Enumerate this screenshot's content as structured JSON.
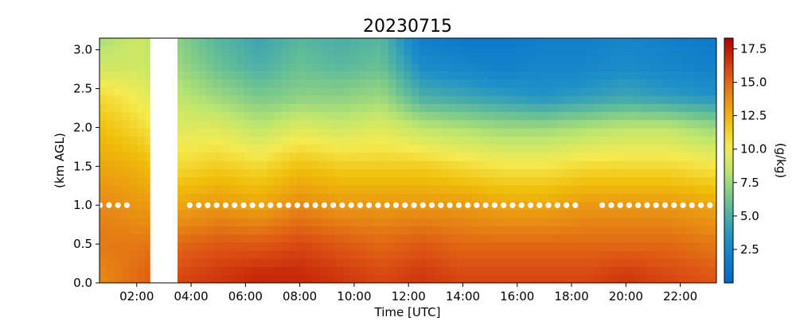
{
  "chart_data": {
    "type": "heatmap",
    "title": "20230715",
    "xlabel": "Time [UTC]",
    "ylabel": "(km AGL)",
    "colorbar_label": "(g/kg)",
    "colormap": "jet_r-like (blue=low, red=high)",
    "x_unit": "hours UTC",
    "xlim": [
      0.63,
      23.33
    ],
    "ylim": [
      0.0,
      3.15
    ],
    "x_ticks": [
      {
        "value": 2,
        "label": "02:00"
      },
      {
        "value": 4,
        "label": "04:00"
      },
      {
        "value": 6,
        "label": "06:00"
      },
      {
        "value": 8,
        "label": "08:00"
      },
      {
        "value": 10,
        "label": "10:00"
      },
      {
        "value": 12,
        "label": "12:00"
      },
      {
        "value": 14,
        "label": "14:00"
      },
      {
        "value": 16,
        "label": "16:00"
      },
      {
        "value": 18,
        "label": "18:00"
      },
      {
        "value": 20,
        "label": "20:00"
      },
      {
        "value": 22,
        "label": "22:00"
      }
    ],
    "y_ticks": [
      {
        "value": 0.0,
        "label": "0.0"
      },
      {
        "value": 0.5,
        "label": "0.5"
      },
      {
        "value": 1.0,
        "label": "1.0"
      },
      {
        "value": 1.5,
        "label": "1.5"
      },
      {
        "value": 2.0,
        "label": "2.0"
      },
      {
        "value": 2.5,
        "label": "2.5"
      },
      {
        "value": 3.0,
        "label": "3.0"
      }
    ],
    "colorbar_range": [
      0.0,
      18.3
    ],
    "colorbar_ticks": [
      {
        "value": 2.5,
        "label": "2.5"
      },
      {
        "value": 5.0,
        "label": "5.0"
      },
      {
        "value": 7.5,
        "label": "7.5"
      },
      {
        "value": 10.0,
        "label": "10.0"
      },
      {
        "value": 12.5,
        "label": "12.5"
      },
      {
        "value": 15.0,
        "label": "15.0"
      },
      {
        "value": 17.5,
        "label": "17.5"
      }
    ],
    "data_gap": {
      "x_start": 2.5,
      "x_end": 3.5
    },
    "time_columns": [
      {
        "t": 0.7,
        "profile": [
          14,
          14.5,
          14,
          13,
          12,
          11,
          9,
          8
        ]
      },
      {
        "t": 2.1,
        "profile": [
          15,
          14.5,
          13.5,
          12.5,
          11,
          10,
          9,
          9
        ]
      },
      {
        "t": 3.5,
        "profile": [
          16,
          15,
          13,
          11,
          9.5,
          8.5,
          7.5,
          7
        ]
      },
      {
        "t": 5.0,
        "profile": [
          16.5,
          15.5,
          13.5,
          11.5,
          9.5,
          7.5,
          6,
          5.5
        ]
      },
      {
        "t": 6.5,
        "profile": [
          17,
          15.5,
          13,
          11,
          8.5,
          6.5,
          5,
          4.5
        ]
      },
      {
        "t": 8.0,
        "profile": [
          17,
          16,
          14,
          12,
          9.5,
          7,
          6,
          5.5
        ]
      },
      {
        "t": 9.5,
        "profile": [
          16.5,
          15.5,
          13.5,
          11.5,
          9,
          7,
          5.5,
          5
        ]
      },
      {
        "t": 11.0,
        "profile": [
          16,
          15,
          13.5,
          11.5,
          9.5,
          7.5,
          6,
          5.5
        ]
      },
      {
        "t": 12.5,
        "profile": [
          16.5,
          15.5,
          13.5,
          11.5,
          8.5,
          5,
          3,
          2
        ]
      },
      {
        "t": 14.0,
        "profile": [
          16,
          15,
          13.5,
          11,
          8,
          4.5,
          2.5,
          1.5
        ]
      },
      {
        "t": 15.5,
        "profile": [
          16,
          15,
          13,
          10.5,
          7.5,
          4,
          2,
          1.5
        ]
      },
      {
        "t": 17.0,
        "profile": [
          16,
          15,
          13,
          10.5,
          7.5,
          3.5,
          2.5,
          2
        ]
      },
      {
        "t": 18.5,
        "profile": [
          16,
          15,
          13.5,
          11,
          8,
          4,
          2.5,
          2
        ]
      },
      {
        "t": 20.0,
        "profile": [
          16.5,
          15,
          13.5,
          11,
          8.5,
          4.5,
          3,
          2.5
        ]
      },
      {
        "t": 21.5,
        "profile": [
          16,
          15,
          13.5,
          11,
          8.5,
          4,
          2.5,
          2
        ]
      },
      {
        "t": 23.3,
        "profile": [
          15.5,
          14.5,
          13,
          10.5,
          7.5,
          3.5,
          2,
          1.5
        ]
      }
    ],
    "profile_heights_km": [
      0.1,
      0.5,
      1.0,
      1.5,
      2.0,
      2.4,
      2.8,
      3.1
    ],
    "marker_series": {
      "name": "",
      "y": 1.0,
      "x_start": 0.65,
      "x_end": 23.33,
      "spacing_hours": 0.33,
      "gaps": [
        [
          1.9,
          3.75
        ],
        [
          18.45,
          18.85
        ]
      ],
      "color": "#ffffff"
    }
  }
}
